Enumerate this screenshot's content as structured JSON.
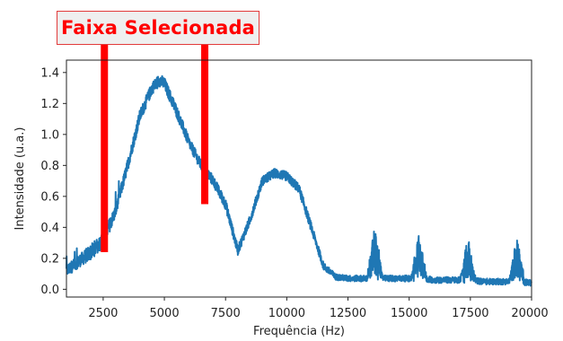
{
  "annotation": {
    "text": "Faixa Selecionada",
    "text_color": "#ff0000",
    "border_color": "#e23b3b",
    "marker_color": "#ff0000",
    "band_start_hz": 2550,
    "band_end_hz": 6650
  },
  "chart_data": {
    "type": "line",
    "title": "",
    "xlabel": "Frequência (Hz)",
    "ylabel": "Intensidade (u.a.)",
    "xlim": [
      1000,
      20000
    ],
    "ylim": [
      -0.05,
      1.48
    ],
    "xticks": [
      2500,
      5000,
      7500,
      10000,
      12500,
      15000,
      17500,
      20000
    ],
    "yticks": [
      0.0,
      0.2,
      0.4,
      0.6,
      0.8,
      1.0,
      1.2,
      1.4
    ],
    "ytick_labels": [
      "0.0",
      "0.2",
      "0.4",
      "0.6",
      "0.8",
      "1.0",
      "1.2",
      "1.4"
    ],
    "grid": false,
    "line_color": "#1f77b4",
    "series": [
      {
        "x": [
          1000,
          1500,
          2000,
          2500,
          3000,
          3500,
          4000,
          4500,
          4800,
          5000,
          5500,
          6000,
          6500,
          7000,
          7500,
          8000,
          8500,
          9000,
          9500,
          10000,
          10500,
          11000,
          11500,
          12000,
          12500,
          13000,
          13500,
          14000,
          14500,
          15000,
          15500,
          16000,
          16500,
          17000,
          17500,
          18000,
          18500,
          19000,
          19500,
          20000
        ],
        "y": [
          0.12,
          0.18,
          0.24,
          0.32,
          0.5,
          0.8,
          1.12,
          1.3,
          1.35,
          1.33,
          1.15,
          0.95,
          0.8,
          0.7,
          0.55,
          0.25,
          0.45,
          0.7,
          0.75,
          0.73,
          0.65,
          0.4,
          0.15,
          0.08,
          0.07,
          0.07,
          0.07,
          0.07,
          0.07,
          0.07,
          0.07,
          0.06,
          0.06,
          0.06,
          0.06,
          0.05,
          0.05,
          0.05,
          0.05,
          0.04
        ],
        "noise_amplitude": [
          0.08,
          0.08,
          0.1,
          0.1,
          0.08,
          0.08,
          0.08,
          0.08,
          0.08,
          0.08,
          0.08,
          0.07,
          0.07,
          0.07,
          0.07,
          0.06,
          0.06,
          0.06,
          0.06,
          0.06,
          0.06,
          0.06,
          0.05,
          0.04,
          0.04,
          0.04,
          0.04,
          0.04,
          0.04,
          0.04,
          0.04,
          0.04,
          0.04,
          0.04,
          0.04,
          0.04,
          0.04,
          0.04,
          0.04,
          0.04
        ]
      }
    ],
    "spikes": [
      {
        "x": 13600,
        "height": 0.35
      },
      {
        "x": 15400,
        "height": 0.3
      },
      {
        "x": 17400,
        "height": 0.28
      },
      {
        "x": 19400,
        "height": 0.3
      }
    ]
  }
}
